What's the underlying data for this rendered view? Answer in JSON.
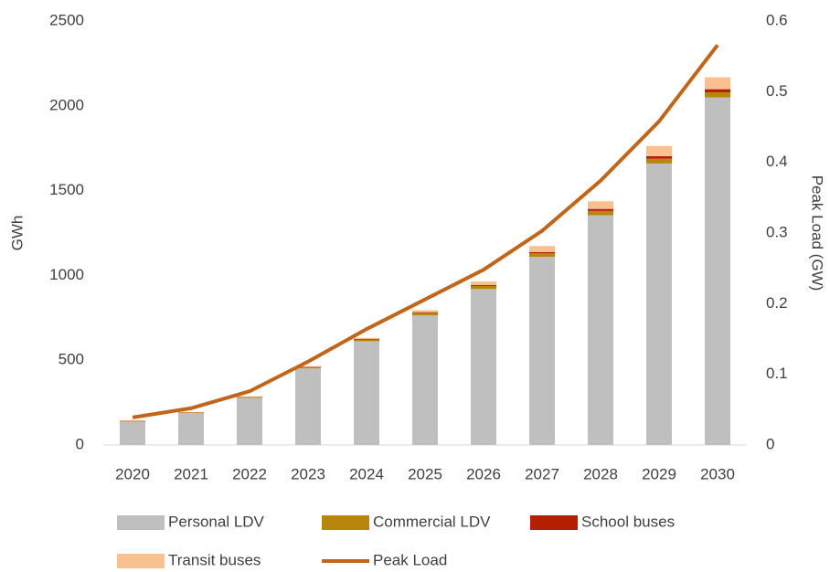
{
  "chart_data": {
    "type": "bar",
    "stacked": true,
    "categories": [
      "2020",
      "2021",
      "2022",
      "2023",
      "2024",
      "2025",
      "2026",
      "2027",
      "2028",
      "2029",
      "2030"
    ],
    "ylabel": "GWh",
    "y2label": "Peak Load (GW)",
    "ylim": [
      0,
      2500
    ],
    "yticks": [
      0,
      500,
      1000,
      1500,
      2000,
      2500
    ],
    "y2lim": [
      0,
      0.6
    ],
    "y2ticks": [
      0,
      0.1,
      0.2,
      0.3,
      0.4,
      0.5,
      0.6
    ],
    "series": [
      {
        "name": "Personal LDV",
        "color": "#bfbfbf",
        "values": [
          138,
          188,
          278,
          452,
          612,
          765,
          920,
          1110,
          1355,
          1660,
          2050
        ]
      },
      {
        "name": "Commercial LDV",
        "color": "#b8860b",
        "values": [
          4,
          4,
          5,
          7,
          10,
          14,
          18,
          20,
          25,
          28,
          30
        ]
      },
      {
        "name": "School buses",
        "color": "#b22000",
        "values": [
          1,
          1,
          1,
          2,
          3,
          4,
          6,
          8,
          12,
          15,
          18
        ]
      },
      {
        "name": "Transit buses",
        "color": "#fac090",
        "values": [
          2,
          2,
          3,
          4,
          7,
          12,
          20,
          35,
          45,
          60,
          70
        ]
      },
      {
        "name": "Peak Load",
        "color": "#c0651a",
        "type": "line",
        "axis": "y2",
        "values": [
          0.039,
          0.052,
          0.076,
          0.118,
          0.164,
          0.206,
          0.248,
          0.303,
          0.374,
          0.458,
          0.566
        ]
      }
    ]
  }
}
